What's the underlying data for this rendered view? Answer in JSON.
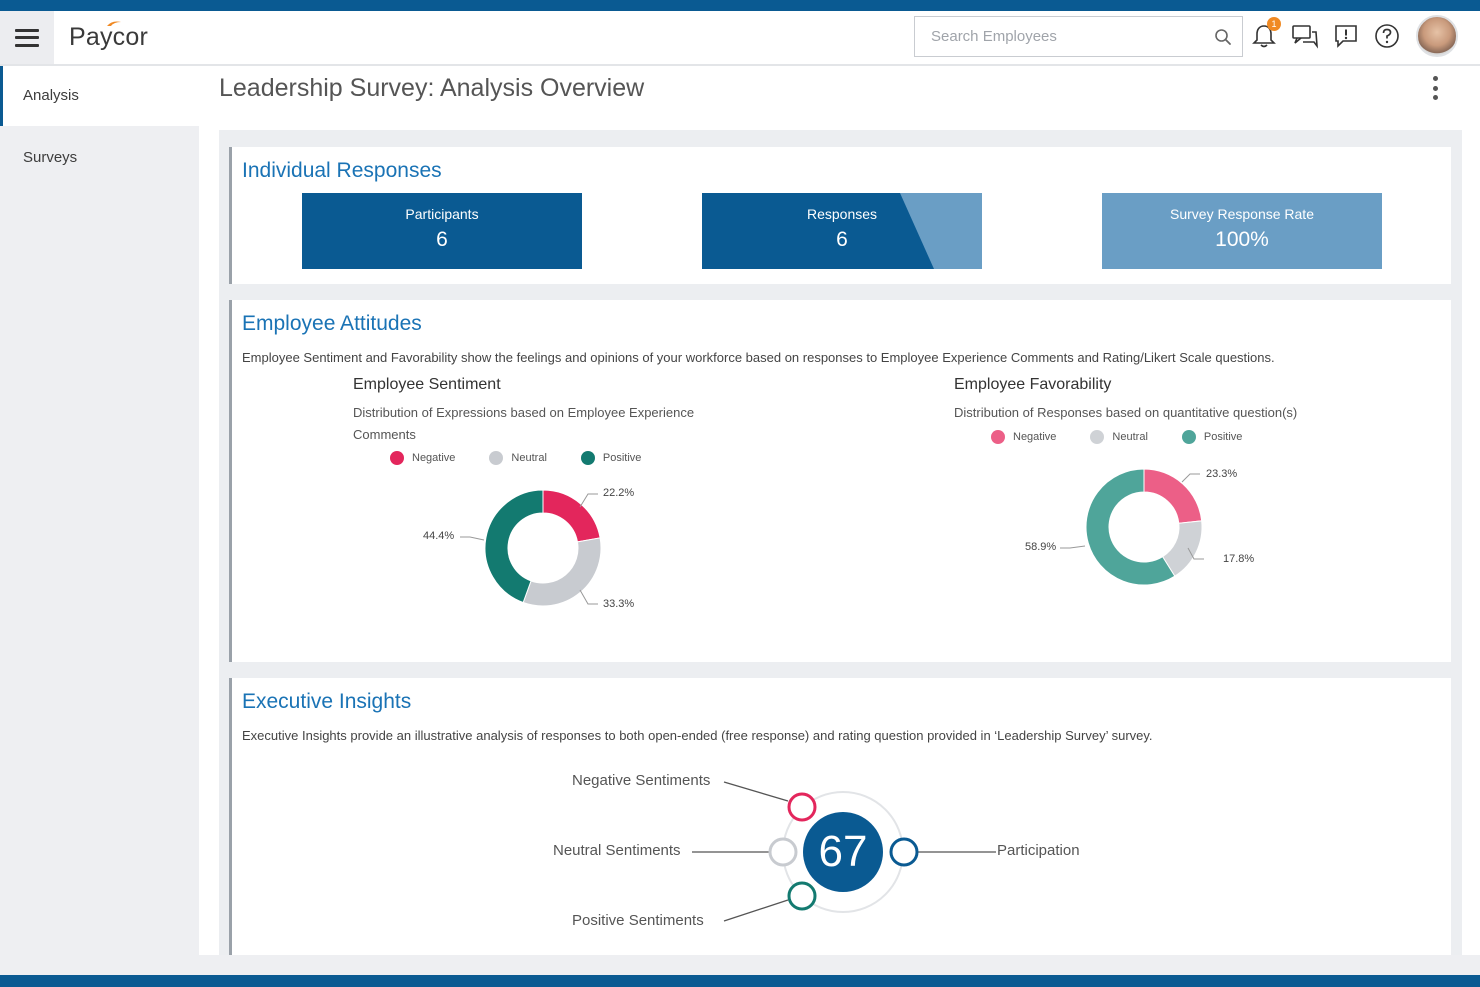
{
  "header": {
    "logo": "Paycor",
    "search_placeholder": "Search Employees",
    "notification_count": "1"
  },
  "sidebar": {
    "items": [
      {
        "label": "Analysis",
        "active": true
      },
      {
        "label": "Surveys",
        "active": false
      }
    ]
  },
  "page": {
    "title": "Leadership Survey: Analysis Overview"
  },
  "individual_responses": {
    "title": "Individual Responses",
    "tiles": [
      {
        "label": "Participants",
        "value": "6"
      },
      {
        "label": "Responses",
        "value": "6"
      },
      {
        "label": "Survey Response Rate",
        "value": "100%"
      }
    ]
  },
  "employee_attitudes": {
    "title": "Employee Attitudes",
    "description": "Employee Sentiment and Favorability show the feelings and opinions of your workforce based on responses to Employee Experience Comments and Rating/Likert Scale questions.",
    "legend": [
      "Negative",
      "Neutral",
      "Positive"
    ],
    "sentiment": {
      "title": "Employee Sentiment",
      "description_line1": "Distribution of Expressions based on Employee Experience",
      "description_line2": "Comments",
      "labels": {
        "negative": "22.2%",
        "neutral": "33.3%",
        "positive": "44.4%"
      }
    },
    "favorability": {
      "title": "Employee Favorability",
      "description": "Distribution of Responses based on quantitative question(s)",
      "labels": {
        "negative": "23.3%",
        "neutral": "17.8%",
        "positive": "58.9%"
      }
    }
  },
  "executive_insights": {
    "title": "Executive Insights",
    "description": "Executive Insights provide an illustrative analysis of responses to both open-ended (free response) and rating question provided in ‘Leadership Survey’ survey.",
    "score": "67",
    "labels": {
      "negative": "Negative Sentiments",
      "neutral": "Neutral Sentiments",
      "positive": "Positive Sentiments",
      "participation": "Participation"
    }
  },
  "colors": {
    "brand_blue": "#0a5a92",
    "light_blue": "#6a9ec5",
    "title_blue": "#1a73b5",
    "sentiment_negative": "#e3265c",
    "sentiment_neutral": "#c8cbd0",
    "sentiment_positive": "#137a70",
    "favorability_negative": "#ec5f87",
    "favorability_neutral": "#cfd2d6",
    "favorability_positive": "#4fa59a"
  },
  "chart_data": [
    {
      "type": "pie",
      "title": "Employee Sentiment",
      "categories": [
        "Negative",
        "Neutral",
        "Positive"
      ],
      "values": [
        22.2,
        33.3,
        44.4
      ]
    },
    {
      "type": "pie",
      "title": "Employee Favorability",
      "categories": [
        "Negative",
        "Neutral",
        "Positive"
      ],
      "values": [
        23.3,
        17.8,
        58.9
      ]
    }
  ]
}
